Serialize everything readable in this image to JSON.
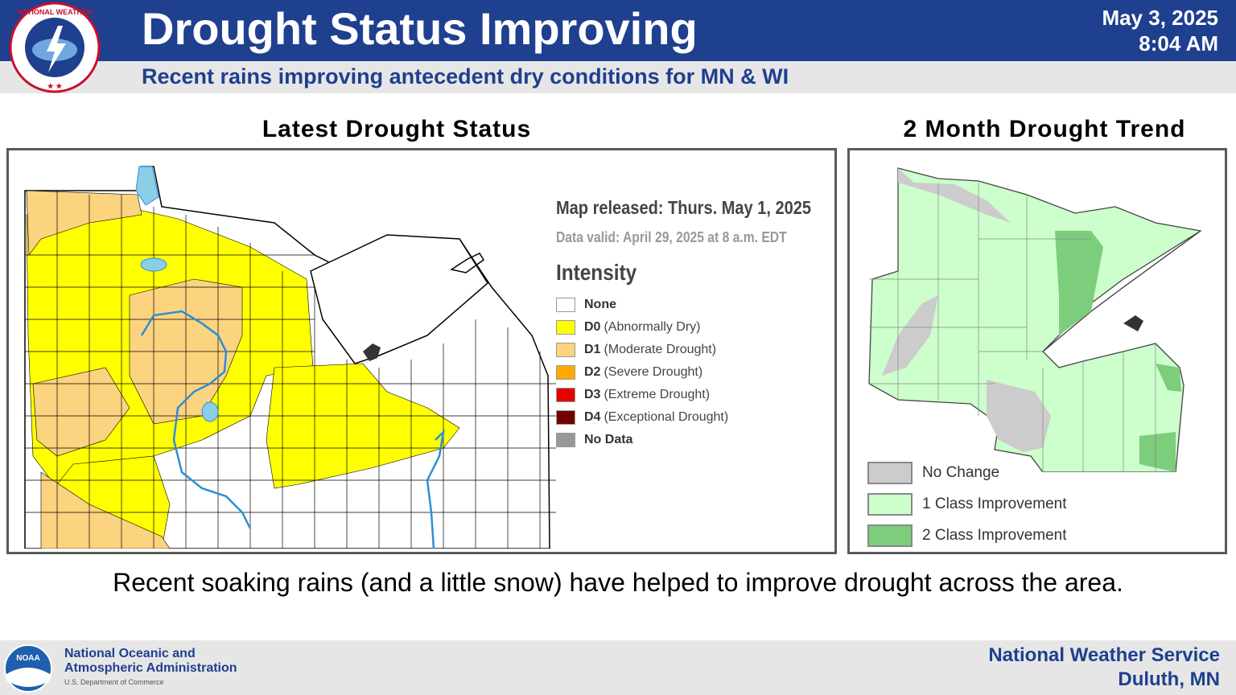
{
  "header": {
    "title": "Drought Status Improving",
    "subtitle": "Recent rains improving antecedent dry conditions for MN & WI",
    "date": "May 3, 2025",
    "time": "8:04 AM",
    "logo_text": "NATIONAL WEATHER SERVICE",
    "logo_icon": "nws-logo-icon"
  },
  "left_panel": {
    "title": "Latest Drought Status",
    "map_released": "Map released: Thurs. May 1, 2025",
    "data_valid": "Data valid: April 29, 2025 at 8 a.m. EDT",
    "legend_title": "Intensity",
    "legend": [
      {
        "code": "None",
        "desc": "",
        "color": "#ffffff"
      },
      {
        "code": "D0",
        "desc": "(Abnormally Dry)",
        "color": "#ffff00"
      },
      {
        "code": "D1",
        "desc": "(Moderate Drought)",
        "color": "#fcd37f"
      },
      {
        "code": "D2",
        "desc": "(Severe Drought)",
        "color": "#ffaa00"
      },
      {
        "code": "D3",
        "desc": "(Extreme Drought)",
        "color": "#e60000"
      },
      {
        "code": "D4",
        "desc": "(Exceptional Drought)",
        "color": "#730000"
      },
      {
        "code": "No Data",
        "desc": "",
        "color": "#999999"
      }
    ]
  },
  "right_panel": {
    "title": "2 Month Drought Trend",
    "legend": [
      {
        "label": "No Change",
        "color": "#cccccc"
      },
      {
        "label": "1 Class Improvement",
        "color": "#ccffcc"
      },
      {
        "label": "2 Class Improvement",
        "color": "#7ccd7c"
      }
    ]
  },
  "caption": "Recent soaking rains (and a little snow) have helped to improve drought across the area.",
  "footer": {
    "noaa_line1": "National Oceanic and",
    "noaa_line2": "Atmospheric Administration",
    "noaa_sub": "U.S. Department of Commerce",
    "noaa_logo_text": "NOAA",
    "nws_line1": "National Weather Service",
    "nws_line2": "Duluth, MN"
  }
}
